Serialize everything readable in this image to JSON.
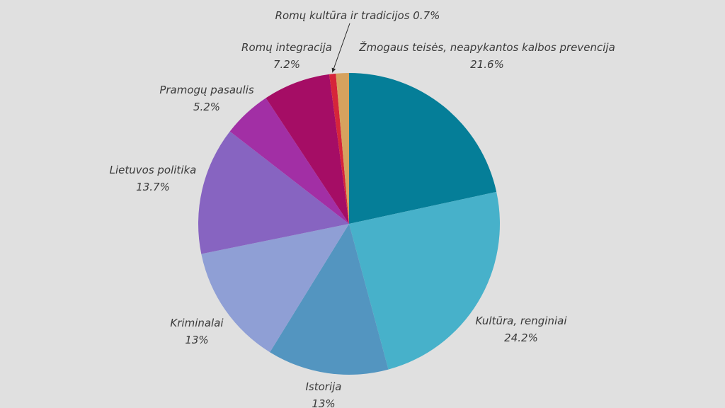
{
  "chart_data": {
    "type": "pie",
    "title": "",
    "start_angle_deg": 0,
    "direction": "clockwise",
    "slices": [
      {
        "label": "Žmogaus teisės, neapykantos kalbos prevencija",
        "value_text": "21.6%",
        "value": 21.6,
        "color": "#057e98"
      },
      {
        "label": "Kultūra, renginiai",
        "value_text": "24.2%",
        "value": 24.2,
        "color": "#47b1ca"
      },
      {
        "label": "Istorija",
        "value_text": "13%",
        "value": 13.0,
        "color": "#5395c0"
      },
      {
        "label": "Kriminalai",
        "value_text": "13%",
        "value": 13.0,
        "color": "#8f9fd5"
      },
      {
        "label": "Lietuvos politika",
        "value_text": "13.7%",
        "value": 13.7,
        "color": "#8764c1"
      },
      {
        "label": "Pramogų pasaulis",
        "value_text": "5.2%",
        "value": 5.2,
        "color": "#a22fa5"
      },
      {
        "label": "Romų integracija",
        "value_text": "7.2%",
        "value": 7.2,
        "color": "#a50d65"
      },
      {
        "label": "Romų kultūra ir tradicijos",
        "value_text": "0.7%",
        "value": 0.7,
        "color": "#d6253a"
      },
      {
        "label": "",
        "value_text": "",
        "value": 1.4,
        "color": "#d6a25e"
      }
    ]
  }
}
